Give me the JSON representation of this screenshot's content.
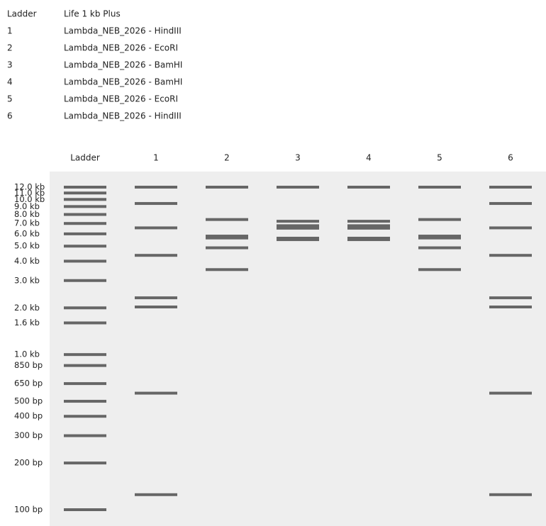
{
  "legend": [
    {
      "lane": "Ladder",
      "sample": "Life 1 kb Plus"
    },
    {
      "lane": "1",
      "sample": "Lambda_NEB_2026 - HindIII"
    },
    {
      "lane": "2",
      "sample": "Lambda_NEB_2026 - EcoRI"
    },
    {
      "lane": "3",
      "sample": "Lambda_NEB_2026 - BamHI"
    },
    {
      "lane": "4",
      "sample": "Lambda_NEB_2026 - BamHI"
    },
    {
      "lane": "5",
      "sample": "Lambda_NEB_2026 - EcoRI"
    },
    {
      "lane": "6",
      "sample": "Lambda_NEB_2026 - HindIII"
    }
  ],
  "lanes": [
    {
      "label": "Ladder",
      "bands": [
        {
          "value": 12000,
          "label": "12.0 kb"
        },
        {
          "value": 11000,
          "label": "11.0 kb"
        },
        {
          "value": 10000,
          "label": "10.0 kb"
        },
        {
          "value": 9000,
          "label": "9.0 kb"
        },
        {
          "value": 8000,
          "label": "8.0 kb"
        },
        {
          "value": 7000,
          "label": "7.0 kb"
        },
        {
          "value": 6000,
          "label": "6.0 kb"
        },
        {
          "value": 5000,
          "label": "5.0 kb"
        },
        {
          "value": 4000,
          "label": "4.0 kb"
        },
        {
          "value": 3000,
          "label": "3.0 kb"
        },
        {
          "value": 2000,
          "label": "2.0 kb"
        },
        {
          "value": 1600,
          "label": "1.6 kb"
        },
        {
          "value": 1000,
          "label": "1.0 kb"
        },
        {
          "value": 850,
          "label": "850 bp"
        },
        {
          "value": 650,
          "label": "650 bp"
        },
        {
          "value": 500,
          "label": "500 bp"
        },
        {
          "value": 400,
          "label": "400 bp"
        },
        {
          "value": 300,
          "label": "300 bp"
        },
        {
          "value": 200,
          "label": "200 bp"
        },
        {
          "value": 100,
          "label": "100 bp"
        }
      ]
    },
    {
      "label": "1",
      "bands": [
        12000,
        9416,
        6557,
        4361,
        2322,
        2027,
        564,
        125
      ]
    },
    {
      "label": "2",
      "bands": [
        12000,
        7421,
        5804,
        5643,
        4878,
        3530
      ]
    },
    {
      "label": "3",
      "bands": [
        12000,
        7233,
        6770,
        6527,
        5626,
        5505
      ]
    },
    {
      "label": "4",
      "bands": [
        12000,
        7233,
        6770,
        6527,
        5626,
        5505
      ]
    },
    {
      "label": "5",
      "bands": [
        12000,
        7421,
        5804,
        5643,
        4878,
        3530
      ]
    },
    {
      "label": "6",
      "bands": [
        12000,
        9416,
        6557,
        4361,
        2322,
        2027,
        564,
        125
      ]
    }
  ]
}
